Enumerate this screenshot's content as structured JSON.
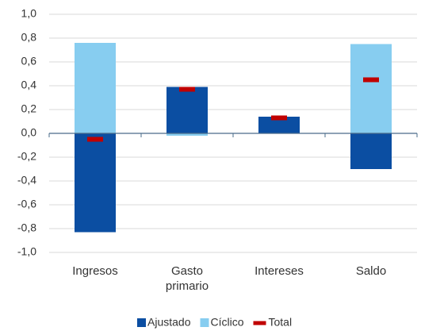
{
  "chart_data": {
    "type": "bar",
    "categories": [
      "Ingresos",
      "Gasto primario",
      "Intereses",
      "Saldo"
    ],
    "series": [
      {
        "name": "Ajustado",
        "color": "#0b4ea2",
        "values": [
          -0.83,
          0.39,
          0.14,
          -0.3
        ]
      },
      {
        "name": "Cíclico",
        "color": "#87cdf0",
        "values": [
          0.76,
          -0.02,
          0,
          0.75
        ]
      },
      {
        "name": "Total",
        "color": "#c00000",
        "style": "dash",
        "values": [
          -0.05,
          0.37,
          0.13,
          0.45
        ]
      }
    ],
    "ylim": [
      -1.0,
      1.0
    ],
    "yticks": [
      {
        "value": -1.0,
        "label": "-1,0"
      },
      {
        "value": -0.8,
        "label": "-0,8"
      },
      {
        "value": -0.6,
        "label": "-0,6"
      },
      {
        "value": -0.4,
        "label": "-0,4"
      },
      {
        "value": -0.2,
        "label": "-0,2"
      },
      {
        "value": 0,
        "label": "0,0"
      },
      {
        "value": 0.2,
        "label": "0,2"
      },
      {
        "value": 0.4,
        "label": "0,4"
      },
      {
        "value": 0.6,
        "label": "0,6"
      },
      {
        "value": 0.8,
        "label": "0,8"
      },
      {
        "value": 1.0,
        "label": "1,0"
      }
    ],
    "grid": true,
    "legend": "bottom"
  }
}
